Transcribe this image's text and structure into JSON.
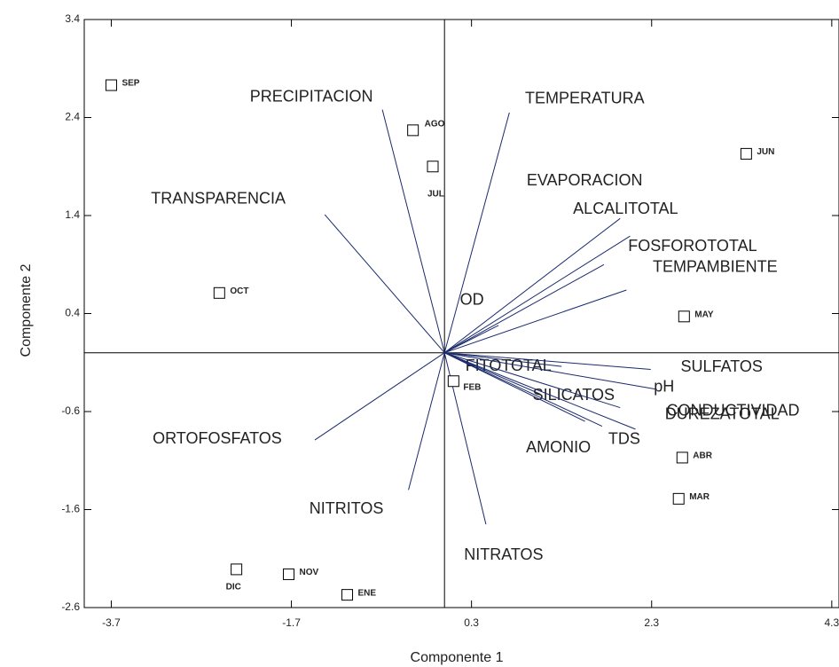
{
  "chart_data": {
    "type": "biplot",
    "xlabel": "Componente 1",
    "ylabel": "Componente 2",
    "xlim": [
      -4.0,
      4.4
    ],
    "ylim": [
      -2.6,
      3.4
    ],
    "xticks": [
      -3.7,
      -1.7,
      0.3,
      2.3,
      4.3
    ],
    "yticks": [
      -2.6,
      -1.6,
      -0.6,
      0.4,
      1.4,
      2.4,
      3.4
    ],
    "points": {
      "labels": [
        "SEP",
        "AGO",
        "JUL",
        "JUN",
        "OCT",
        "MAY",
        "FEB",
        "ABR",
        "MAR",
        "DIC",
        "NOV",
        "ENE"
      ],
      "x": [
        -3.7,
        -0.35,
        -0.13,
        3.35,
        -2.5,
        2.66,
        0.1,
        2.64,
        2.6,
        -2.31,
        -1.73,
        -1.08
      ],
      "y": [
        2.73,
        2.27,
        1.9,
        2.03,
        0.61,
        0.37,
        -0.29,
        -1.07,
        -1.49,
        -2.21,
        -2.26,
        -2.47
      ]
    },
    "vectors": {
      "labels": [
        "PRECIPITACION",
        "TEMPERATURA",
        "TRANSPARENCIA",
        "EVAPORACION",
        "ALCALITOTAL",
        "FOSFOROTOTAL",
        "TEMPAMBIENTE",
        "OD",
        "FITOTOTAL",
        "SULFATOS",
        "pH",
        "SILICATOS",
        "CONDUCTIVIDAD",
        "DUREZATOTAL",
        "AMONIO",
        "TDS",
        "ORTOFOSFATOS",
        "NITRITOS",
        "NITRATOS"
      ],
      "x": [
        -0.69,
        0.72,
        -1.33,
        1.95,
        2.06,
        1.77,
        2.02,
        0.6,
        1.3,
        2.29,
        2.34,
        1.06,
        2.12,
        1.95,
        1.56,
        1.75,
        -1.44,
        -0.4,
        0.46
      ],
      "y": [
        2.48,
        2.45,
        1.41,
        1.37,
        1.19,
        0.9,
        0.64,
        0.28,
        -0.14,
        -0.17,
        -0.37,
        -0.42,
        -0.78,
        -0.56,
        -0.7,
        -0.75,
        -0.89,
        -1.4,
        -1.75
      ],
      "color": "#1a2a6c"
    }
  }
}
